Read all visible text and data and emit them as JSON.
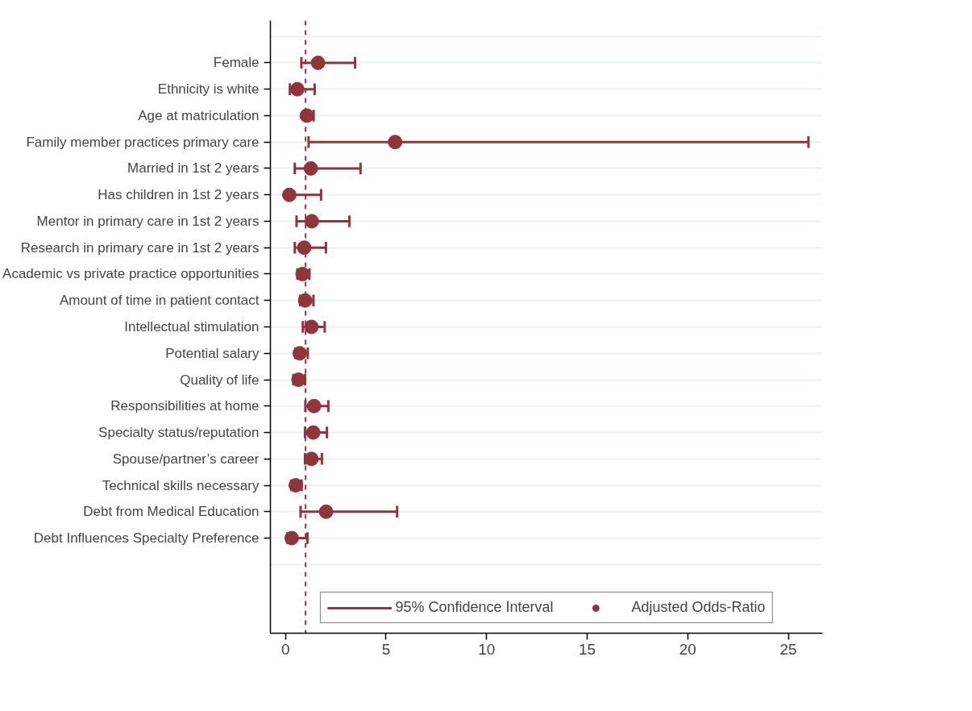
{
  "chart_data": {
    "type": "scatter",
    "orientation": "horizontal",
    "categories": [
      "Female",
      "Ethnicity is white",
      "Age at matriculation",
      "Family member practices primary care",
      "Married in 1st 2 years",
      "Has children in 1st 2 years",
      "Mentor in primary care in 1st 2 years",
      "Research in primary care in 1st 2 years",
      "Academic vs private practice opportunities",
      "Amount of time in patient contact",
      "Intellectual stimulation",
      "Potential salary",
      "Quality of life",
      "Responsibilities at home",
      "Specialty status/reputation",
      "Spouse/partner’s career",
      "Technical skills necessary",
      "Debt from Medical Education",
      "Debt Influences Specialty Preference"
    ],
    "series": [
      {
        "name": "Adjusted Odds-Ratio",
        "color": "#90353b",
        "values": [
          1.62,
          0.59,
          1.06,
          5.45,
          1.26,
          0.19,
          1.31,
          0.93,
          0.85,
          0.98,
          1.29,
          0.71,
          0.65,
          1.42,
          1.38,
          1.29,
          0.51,
          2.02,
          0.31
        ],
        "errors": [
          [
            0.79,
            3.46
          ],
          [
            0.22,
            1.45
          ],
          [
            1.06,
            1.4
          ],
          [
            1.15,
            26.0
          ],
          [
            0.46,
            3.73
          ],
          [
            0.19,
            1.77
          ],
          [
            0.55,
            3.18
          ],
          [
            0.46,
            2.01
          ],
          [
            0.59,
            1.19
          ],
          [
            0.73,
            1.39
          ],
          [
            0.86,
            1.95
          ],
          [
            0.49,
            1.11
          ],
          [
            0.39,
            0.97
          ],
          [
            0.99,
            2.13
          ],
          [
            0.97,
            2.06
          ],
          [
            0.97,
            1.81
          ],
          [
            0.29,
            0.8
          ],
          [
            0.75,
            5.55
          ],
          [
            0.09,
            1.09
          ]
        ]
      }
    ],
    "annotations": [
      "95% Confidence Interval"
    ],
    "ref_lines": [
      {
        "axis": "x",
        "value": 1,
        "color": "#90353b",
        "line_style": "dashed"
      }
    ],
    "xlim": [
      -0.75,
      26.7
    ],
    "xticks": [
      0,
      5,
      10,
      15,
      20,
      25
    ],
    "grid": "y",
    "legend": "bottom",
    "marker": "circle"
  }
}
